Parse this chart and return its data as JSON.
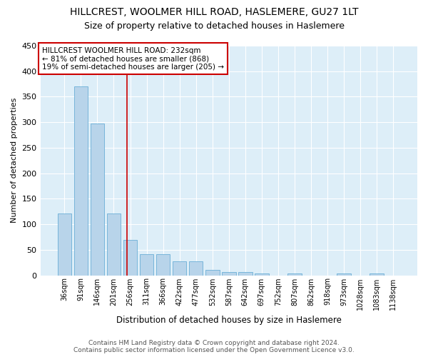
{
  "title": "HILLCREST, WOOLMER HILL ROAD, HASLEMERE, GU27 1LT",
  "subtitle": "Size of property relative to detached houses in Haslemere",
  "xlabel": "Distribution of detached houses by size in Haslemere",
  "ylabel": "Number of detached properties",
  "categories": [
    "36sqm",
    "91sqm",
    "146sqm",
    "201sqm",
    "256sqm",
    "311sqm",
    "366sqm",
    "422sqm",
    "477sqm",
    "532sqm",
    "587sqm",
    "642sqm",
    "697sqm",
    "752sqm",
    "807sqm",
    "862sqm",
    "918sqm",
    "973sqm",
    "1028sqm",
    "1083sqm",
    "1138sqm"
  ],
  "values": [
    121,
    370,
    298,
    121,
    70,
    42,
    42,
    28,
    28,
    10,
    7,
    7,
    4,
    0,
    4,
    0,
    0,
    4,
    0,
    4,
    0
  ],
  "bar_color": "#b8d4ea",
  "bar_edge_color": "#6aaed6",
  "background_color": "#ddeef8",
  "grid_color": "#ffffff",
  "vline_color": "#cc0000",
  "vline_pos": 3.82,
  "annotation_text": "HILLCREST WOOLMER HILL ROAD: 232sqm\n← 81% of detached houses are smaller (868)\n19% of semi-detached houses are larger (205) →",
  "annotation_box_color": "#ffffff",
  "annotation_box_edge": "#cc0000",
  "footer1": "Contains HM Land Registry data © Crown copyright and database right 2024.",
  "footer2": "Contains public sector information licensed under the Open Government Licence v3.0.",
  "ylim": [
    0,
    450
  ],
  "yticks": [
    0,
    50,
    100,
    150,
    200,
    250,
    300,
    350,
    400,
    450
  ],
  "title_fontsize": 10,
  "subtitle_fontsize": 9,
  "xlabel_fontsize": 8.5,
  "ylabel_fontsize": 8,
  "tick_fontsize": 7,
  "annotation_fontsize": 7.5,
  "footer_fontsize": 6.5
}
